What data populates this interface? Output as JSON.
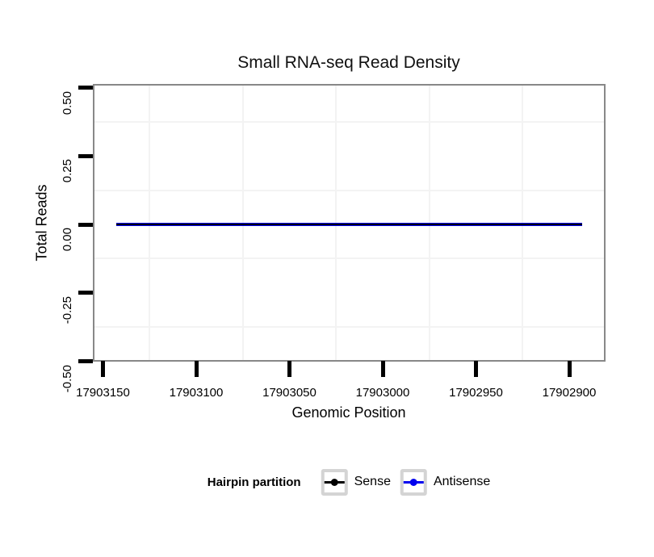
{
  "chart_data": {
    "type": "line",
    "title": "Small RNA-seq Read Density",
    "xlabel": "Genomic Position",
    "ylabel": "Total Reads",
    "x_axis": {
      "reversed": true,
      "tick_values": [
        17903150,
        17903100,
        17903050,
        17903000,
        17902950,
        17902900
      ],
      "tick_labels": [
        "17903150",
        "17903100",
        "17903050",
        "17903000",
        "17902950",
        "17902900"
      ],
      "displayed_range": [
        17903157,
        17902881
      ]
    },
    "y_axis": {
      "tick_values": [
        0.5,
        0.25,
        0,
        -0.25,
        -0.5
      ],
      "tick_labels": [
        "0.50",
        "0.25",
        "0.00",
        "-0.25",
        "-0.50"
      ],
      "limits": [
        -0.5,
        0.5
      ]
    },
    "grid": {
      "minor_gridlines_only": true
    },
    "series": [
      {
        "name": "Sense",
        "color": "#000000",
        "x": [
          17903143,
          17902893
        ],
        "y": [
          0,
          0
        ]
      },
      {
        "name": "Antisense",
        "color": "#0000ee",
        "x": [
          17903143,
          17902893
        ],
        "y": [
          0,
          0
        ]
      }
    ],
    "legend": {
      "title": "Hairpin partition",
      "position": "bottom",
      "entries": [
        {
          "label": "Sense",
          "color": "#000000"
        },
        {
          "label": "Antisense",
          "color": "#0000ee"
        }
      ]
    }
  }
}
